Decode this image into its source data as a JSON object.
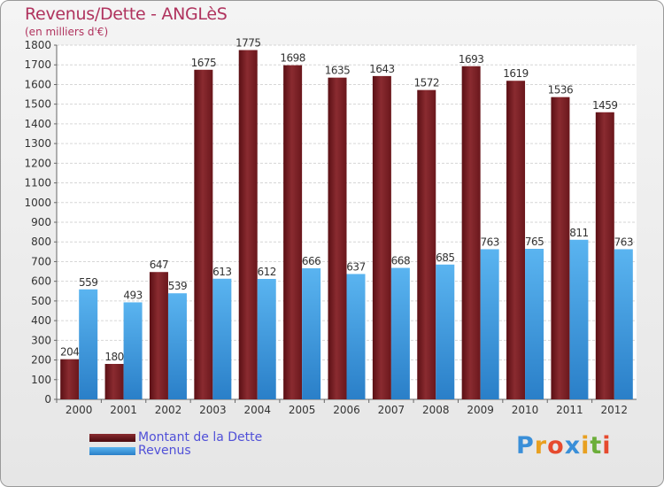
{
  "chart_data": {
    "type": "bar",
    "title": "Revenus/Dette - ANGLèS",
    "subtitle": "(en milliers d'€)",
    "categories": [
      "2000",
      "2001",
      "2002",
      "2003",
      "2004",
      "2005",
      "2006",
      "2007",
      "2008",
      "2009",
      "2010",
      "2011",
      "2012"
    ],
    "series": [
      {
        "name": "Montant de la Dette",
        "color": "#7a1d22",
        "values": [
          204,
          180,
          647,
          1675,
          1775,
          1698,
          1635,
          1643,
          1572,
          1693,
          1619,
          1536,
          1459
        ]
      },
      {
        "name": "Revenus",
        "color": "#3f9fe0",
        "values": [
          559,
          493,
          539,
          613,
          612,
          666,
          637,
          668,
          685,
          763,
          765,
          811,
          763
        ]
      }
    ],
    "ylim": [
      0,
      1800
    ],
    "yticks": [
      0,
      100,
      200,
      300,
      400,
      500,
      600,
      700,
      800,
      900,
      1000,
      1100,
      1200,
      1300,
      1400,
      1500,
      1600,
      1700,
      1800
    ],
    "grid": true,
    "legend_position": "bottom-left"
  },
  "logo": {
    "text": "Proxiti",
    "letters": [
      "P",
      "r",
      "o",
      "x",
      "i",
      "t",
      "i"
    ],
    "colors": [
      "#3a8fd8",
      "#e8a020",
      "#e64a2e",
      "#3a8fd8",
      "#e8a020",
      "#6cae3a",
      "#e64a2e"
    ]
  }
}
